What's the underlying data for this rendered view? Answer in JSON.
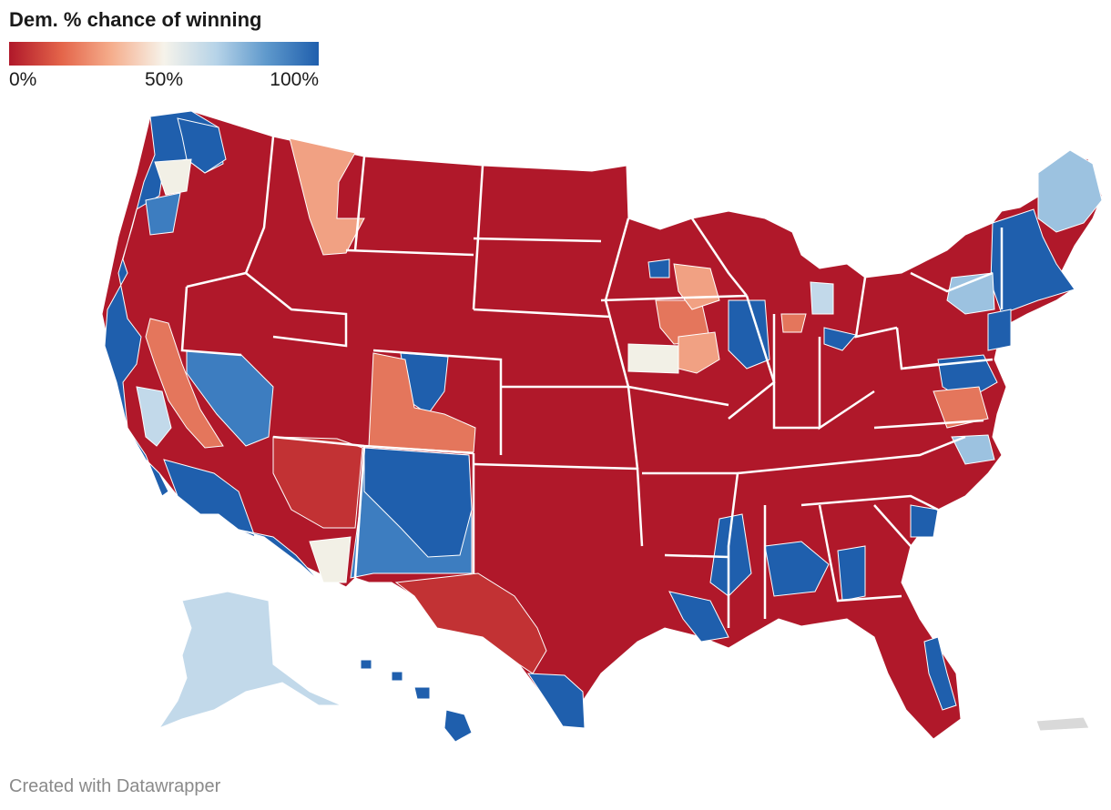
{
  "title": "Dem. % chance of winning",
  "legend": {
    "ticks": [
      "0%",
      "50%",
      "100%"
    ],
    "gradient": [
      "#b0182a",
      "#e4654a",
      "#f5ad8c",
      "#f6f3ea",
      "#b6d3e8",
      "#5f99cc",
      "#1f5fad"
    ]
  },
  "colors": {
    "safe_rep": "#b0182a",
    "likely_rep": "#c23234",
    "lean_rep": "#e4765c",
    "tilt_rep": "#f1a183",
    "tossup": "#f2f0e6",
    "tilt_dem": "#c2d9ea",
    "lean_dem": "#9cc2e0",
    "likely_dem": "#3d7dc0",
    "safe_dem": "#1f5fad",
    "no_race": "#d9d9d9",
    "border": "#ffffff"
  },
  "footer": "Created with Datawrapper"
}
